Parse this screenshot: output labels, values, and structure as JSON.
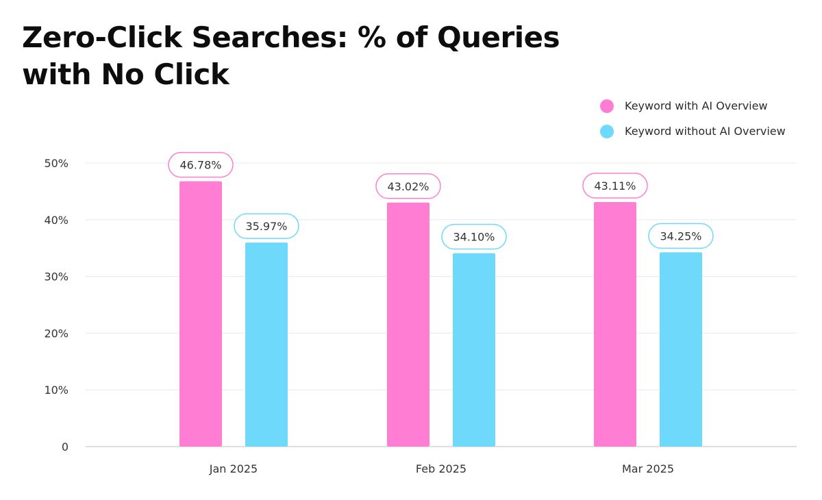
{
  "chart_data": {
    "type": "bar",
    "title": "Zero-Click Searches: % of Queries with No Click",
    "xlabel": "",
    "ylabel": "",
    "categories": [
      "Jan 2025",
      "Feb 2025",
      "Mar 2025"
    ],
    "series": [
      {
        "name": "Keyword with AI Overview",
        "color": "#FF7ED4",
        "values": [
          46.78,
          43.02,
          43.11
        ],
        "labels": [
          "46.78%",
          "43.02%",
          "43.11%"
        ]
      },
      {
        "name": "Keyword without AI Overview",
        "color": "#6ED9FB",
        "values": [
          35.97,
          34.1,
          34.25
        ],
        "labels": [
          "35.97%",
          "34.10%",
          "34.25%"
        ]
      }
    ],
    "ylim": [
      0,
      50
    ],
    "yticks": [
      0,
      10,
      20,
      30,
      40,
      50
    ],
    "ytick_labels": [
      "0",
      "10%",
      "20%",
      "30%",
      "40%",
      "50%"
    ],
    "grid": true,
    "legend_position": "top-right"
  }
}
